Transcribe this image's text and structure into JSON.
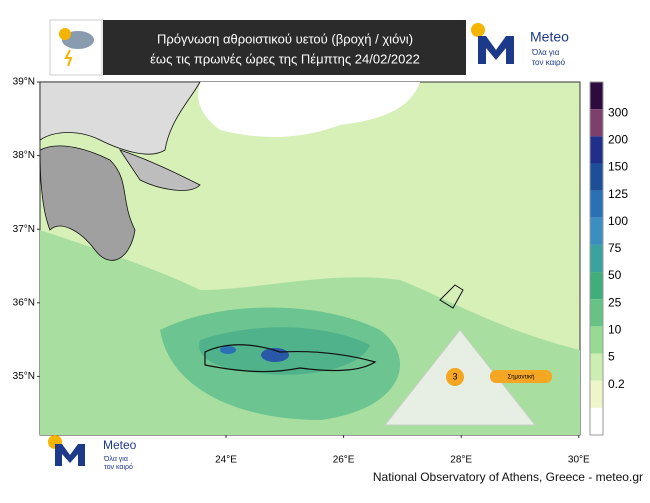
{
  "header": {
    "title_lines": [
      "Πρόγνωση αθροιστικού υετού (βροχή / χιόνι)",
      "έως τις πρωινές ώρες της Πέμπτης 24/02/2022"
    ]
  },
  "logo": {
    "name": "Meteo",
    "tagline": [
      "Όλα για",
      "τον καιρό"
    ]
  },
  "map": {
    "lat_labels": [
      "39°N",
      "38°N",
      "37°N",
      "36°N",
      "35°N"
    ],
    "lon_labels": [
      "24°E",
      "26°E",
      "28°E",
      "30°E"
    ]
  },
  "colorbar": {
    "labels": [
      "300",
      "200",
      "150",
      "125",
      "100",
      "75",
      "50",
      "25",
      "10",
      "5",
      "0.2"
    ],
    "colors": [
      "#2d0b3e",
      "#7d3f6c",
      "#1f2f8a",
      "#1d4f98",
      "#2a70b5",
      "#3b8fc0",
      "#3aa39f",
      "#3fae7a",
      "#66c285",
      "#97da92",
      "#cdeeb2",
      "#eef6c9"
    ]
  },
  "warning": {
    "level": "3",
    "label": "Σημαντική"
  },
  "footer": {
    "credit": "National Observatory of Athens, Greece - meteo.gr"
  }
}
